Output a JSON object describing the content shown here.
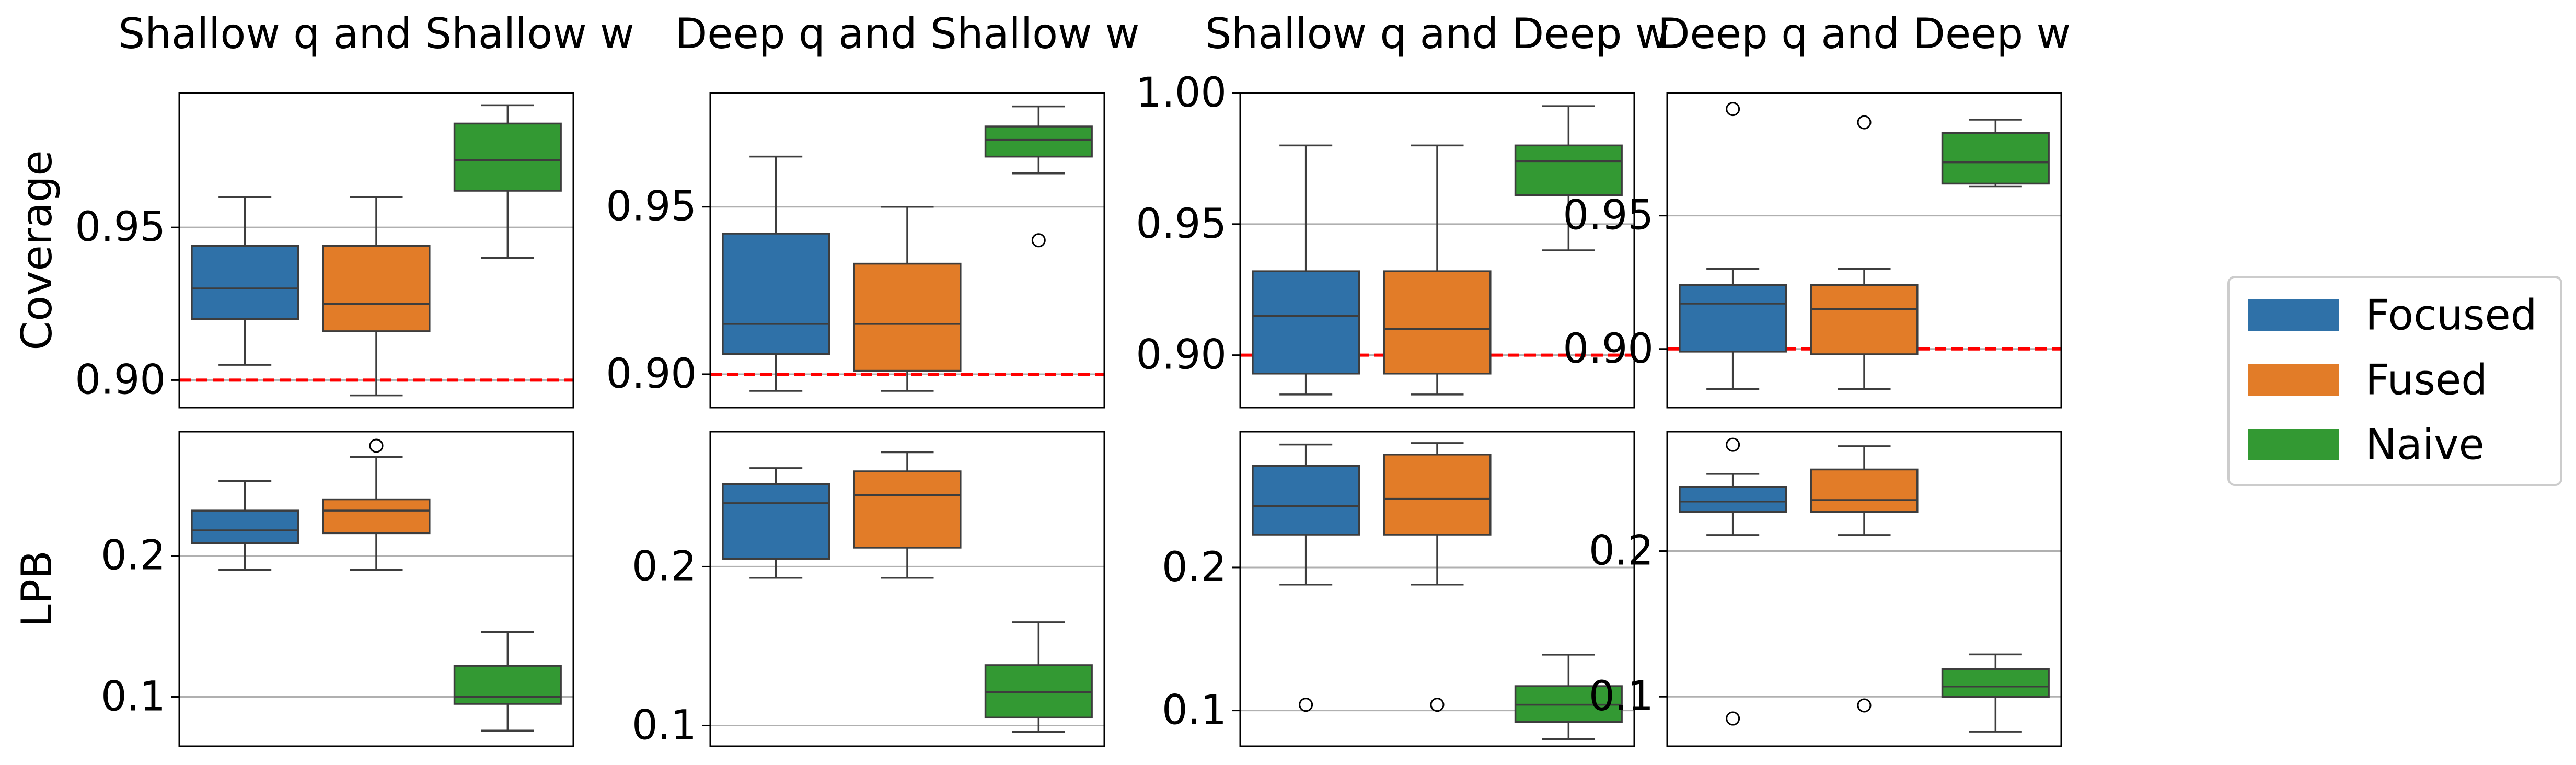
{
  "chart_data": {
    "type": "boxplot",
    "columns": [
      "Shallow q and Shallow w",
      "Deep q and Shallow w",
      "Shallow q and Deep w",
      "Deep q and Deep w"
    ],
    "row_labels": [
      "Coverage",
      "LPB"
    ],
    "legend": {
      "position": "right",
      "entries": [
        {
          "name": "Focused",
          "color": "#2f71a8"
        },
        {
          "name": "Fused",
          "color": "#e27c28"
        },
        {
          "name": "Naive",
          "color": "#339933"
        }
      ]
    },
    "reference_line": {
      "row": "Coverage",
      "value": 0.9,
      "color": "#ff0000",
      "style": "dashed"
    },
    "grid": "horizontal",
    "panels": [
      {
        "row": "Coverage",
        "column": "Shallow q and Shallow w",
        "ylim": [
          0.891,
          0.994
        ],
        "yticks": [
          {
            "value": 0.9,
            "label": "0.90"
          },
          {
            "value": 0.95,
            "label": "0.95"
          }
        ],
        "boxes": [
          {
            "series": "Focused",
            "whisker_low": 0.905,
            "q1": 0.92,
            "median": 0.93,
            "q3": 0.944,
            "whisker_high": 0.96,
            "outliers": []
          },
          {
            "series": "Fused",
            "whisker_low": 0.895,
            "q1": 0.916,
            "median": 0.925,
            "q3": 0.944,
            "whisker_high": 0.96,
            "outliers": []
          },
          {
            "series": "Naive",
            "whisker_low": 0.94,
            "q1": 0.962,
            "median": 0.972,
            "q3": 0.984,
            "whisker_high": 0.99,
            "outliers": []
          }
        ]
      },
      {
        "row": "Coverage",
        "column": "Deep q and Shallow w",
        "ylim": [
          0.89,
          0.984
        ],
        "yticks": [
          {
            "value": 0.9,
            "label": "0.90"
          },
          {
            "value": 0.95,
            "label": "0.95"
          }
        ],
        "boxes": [
          {
            "series": "Focused",
            "whisker_low": 0.895,
            "q1": 0.906,
            "median": 0.915,
            "q3": 0.942,
            "whisker_high": 0.965,
            "outliers": []
          },
          {
            "series": "Fused",
            "whisker_low": 0.895,
            "q1": 0.901,
            "median": 0.915,
            "q3": 0.933,
            "whisker_high": 0.95,
            "outliers": []
          },
          {
            "series": "Naive",
            "whisker_low": 0.96,
            "q1": 0.965,
            "median": 0.97,
            "q3": 0.974,
            "whisker_high": 0.98,
            "outliers": [
              0.94
            ]
          }
        ]
      },
      {
        "row": "Coverage",
        "column": "Shallow q and Deep w",
        "ylim": [
          0.88,
          1.0
        ],
        "yticks": [
          {
            "value": 0.9,
            "label": "0.90"
          },
          {
            "value": 0.95,
            "label": "0.95"
          },
          {
            "value": 1.0,
            "label": "1.00"
          }
        ],
        "boxes": [
          {
            "series": "Focused",
            "whisker_low": 0.885,
            "q1": 0.893,
            "median": 0.915,
            "q3": 0.932,
            "whisker_high": 0.98,
            "outliers": []
          },
          {
            "series": "Fused",
            "whisker_low": 0.885,
            "q1": 0.893,
            "median": 0.91,
            "q3": 0.932,
            "whisker_high": 0.98,
            "outliers": []
          },
          {
            "series": "Naive",
            "whisker_low": 0.94,
            "q1": 0.961,
            "median": 0.974,
            "q3": 0.98,
            "whisker_high": 0.995,
            "outliers": []
          }
        ]
      },
      {
        "row": "Coverage",
        "column": "Deep q and Deep w",
        "ylim": [
          0.878,
          0.996
        ],
        "yticks": [
          {
            "value": 0.9,
            "label": "0.90"
          },
          {
            "value": 0.95,
            "label": "0.95"
          }
        ],
        "boxes": [
          {
            "series": "Focused",
            "whisker_low": 0.885,
            "q1": 0.899,
            "median": 0.917,
            "q3": 0.924,
            "whisker_high": 0.93,
            "outliers": [
              0.99
            ]
          },
          {
            "series": "Fused",
            "whisker_low": 0.885,
            "q1": 0.898,
            "median": 0.915,
            "q3": 0.924,
            "whisker_high": 0.93,
            "outliers": [
              0.985
            ]
          },
          {
            "series": "Naive",
            "whisker_low": 0.961,
            "q1": 0.962,
            "median": 0.97,
            "q3": 0.981,
            "whisker_high": 0.986,
            "outliers": []
          }
        ]
      },
      {
        "row": "LPB",
        "column": "Shallow q and Shallow w",
        "ylim": [
          0.065,
          0.288
        ],
        "yticks": [
          {
            "value": 0.1,
            "label": "0.1"
          },
          {
            "value": 0.2,
            "label": "0.2"
          }
        ],
        "boxes": [
          {
            "series": "Focused",
            "whisker_low": 0.19,
            "q1": 0.209,
            "median": 0.218,
            "q3": 0.232,
            "whisker_high": 0.253,
            "outliers": []
          },
          {
            "series": "Fused",
            "whisker_low": 0.19,
            "q1": 0.216,
            "median": 0.232,
            "q3": 0.24,
            "whisker_high": 0.27,
            "outliers": [
              0.278
            ]
          },
          {
            "series": "Naive",
            "whisker_low": 0.076,
            "q1": 0.095,
            "median": 0.1,
            "q3": 0.122,
            "whisker_high": 0.146,
            "outliers": []
          }
        ]
      },
      {
        "row": "LPB",
        "column": "Deep q and Shallow w",
        "ylim": [
          0.087,
          0.285
        ],
        "yticks": [
          {
            "value": 0.1,
            "label": "0.1"
          },
          {
            "value": 0.2,
            "label": "0.2"
          }
        ],
        "boxes": [
          {
            "series": "Focused",
            "whisker_low": 0.193,
            "q1": 0.205,
            "median": 0.24,
            "q3": 0.252,
            "whisker_high": 0.262,
            "outliers": []
          },
          {
            "series": "Fused",
            "whisker_low": 0.193,
            "q1": 0.212,
            "median": 0.245,
            "q3": 0.26,
            "whisker_high": 0.272,
            "outliers": []
          },
          {
            "series": "Naive",
            "whisker_low": 0.096,
            "q1": 0.105,
            "median": 0.121,
            "q3": 0.138,
            "whisker_high": 0.165,
            "outliers": []
          }
        ]
      },
      {
        "row": "LPB",
        "column": "Shallow q and Deep w",
        "ylim": [
          0.075,
          0.295
        ],
        "yticks": [
          {
            "value": 0.1,
            "label": "0.1"
          },
          {
            "value": 0.2,
            "label": "0.2"
          }
        ],
        "boxes": [
          {
            "series": "Focused",
            "whisker_low": 0.188,
            "q1": 0.223,
            "median": 0.243,
            "q3": 0.271,
            "whisker_high": 0.286,
            "outliers": [
              0.104
            ]
          },
          {
            "series": "Fused",
            "whisker_low": 0.188,
            "q1": 0.223,
            "median": 0.248,
            "q3": 0.279,
            "whisker_high": 0.287,
            "outliers": [
              0.104
            ]
          },
          {
            "series": "Naive",
            "whisker_low": 0.08,
            "q1": 0.092,
            "median": 0.104,
            "q3": 0.117,
            "whisker_high": 0.139,
            "outliers": []
          }
        ]
      },
      {
        "row": "LPB",
        "column": "Deep q and Deep w",
        "ylim": [
          0.066,
          0.282
        ],
        "yticks": [
          {
            "value": 0.1,
            "label": "0.1"
          },
          {
            "value": 0.2,
            "label": "0.2"
          }
        ],
        "boxes": [
          {
            "series": "Focused",
            "whisker_low": 0.211,
            "q1": 0.227,
            "median": 0.234,
            "q3": 0.244,
            "whisker_high": 0.253,
            "outliers": [
              0.273,
              0.085
            ]
          },
          {
            "series": "Fused",
            "whisker_low": 0.211,
            "q1": 0.227,
            "median": 0.235,
            "q3": 0.256,
            "whisker_high": 0.272,
            "outliers": [
              0.094
            ]
          },
          {
            "series": "Naive",
            "whisker_low": 0.076,
            "q1": 0.1,
            "median": 0.107,
            "q3": 0.119,
            "whisker_high": 0.129,
            "outliers": []
          }
        ]
      }
    ]
  }
}
